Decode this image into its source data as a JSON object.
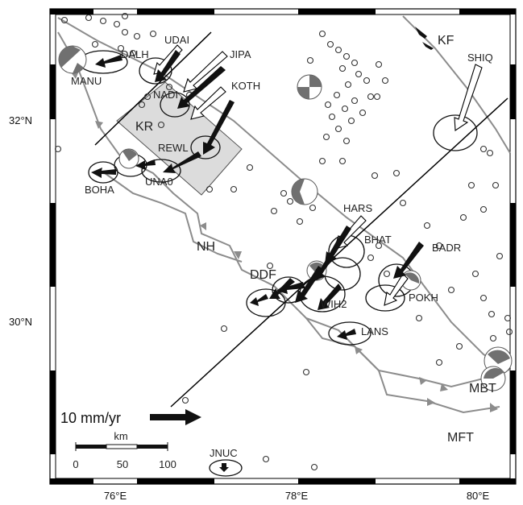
{
  "map": {
    "latitude_labels": [
      "32°N",
      "30°N"
    ],
    "longitude_labels": [
      "76°E",
      "78°E",
      "80°E"
    ],
    "regions": [
      {
        "key": "kr",
        "label": "KR"
      },
      {
        "key": "nh",
        "label": "NH"
      },
      {
        "key": "ddf",
        "label": "DDF"
      }
    ],
    "faults": [
      {
        "key": "kf",
        "label": "KF"
      },
      {
        "key": "mbt",
        "label": "MBT"
      },
      {
        "key": "mft",
        "label": "MFT"
      }
    ],
    "stations": [
      {
        "key": "dalh",
        "label": "DALH"
      },
      {
        "key": "manu",
        "label": "MANU"
      },
      {
        "key": "udai",
        "label": "UDAI"
      },
      {
        "key": "jipa",
        "label": "JIPA"
      },
      {
        "key": "nadi",
        "label": "NADI"
      },
      {
        "key": "koth",
        "label": "KOTH"
      },
      {
        "key": "rewl",
        "label": "REWL"
      },
      {
        "key": "una0",
        "label": "UNA0"
      },
      {
        "key": "boha",
        "label": "BOHA"
      },
      {
        "key": "shiq",
        "label": "SHIQ"
      },
      {
        "key": "hars",
        "label": "HARS"
      },
      {
        "key": "bhat",
        "label": "BHAT"
      },
      {
        "key": "badr",
        "label": "BADR"
      },
      {
        "key": "pokh",
        "label": "POKH"
      },
      {
        "key": "wih2",
        "label": "WIH2"
      },
      {
        "key": "lans",
        "label": "LANS"
      },
      {
        "key": "jnuc",
        "label": "JNUC"
      }
    ],
    "velocity_scale": {
      "label": "10 mm/yr"
    },
    "distance_scale": {
      "unit": "km",
      "ticks": [
        "0",
        "50",
        "100"
      ]
    },
    "colors": {
      "fault_line": "#8c8c8c",
      "region_fill": "#dcdcdc",
      "beachball_dark": "#707070",
      "frame": "#000000"
    }
  }
}
